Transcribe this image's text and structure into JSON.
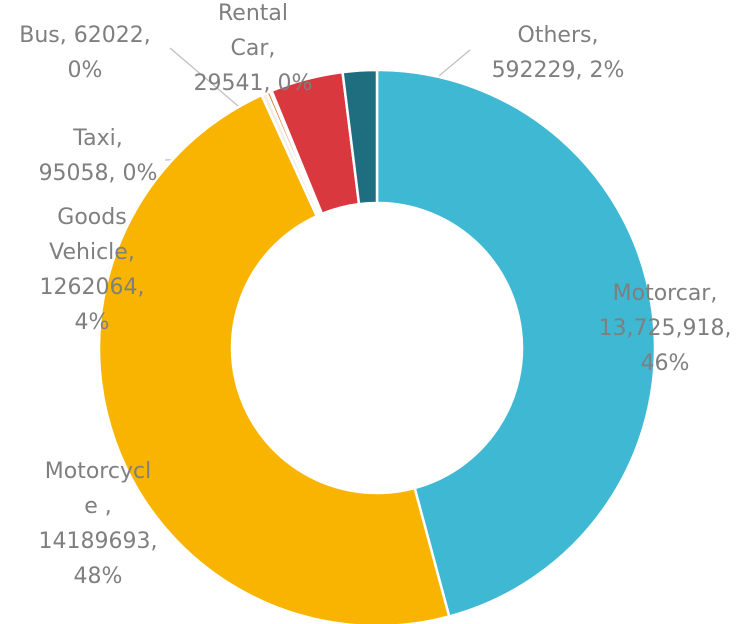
{
  "chart_data": {
    "type": "donut",
    "values": [
      13725918,
      14189693,
      95058,
      62022,
      29541,
      1262064,
      592229
    ],
    "colors": [
      "#3fb8d4",
      "#f8b400",
      "#f3efe6",
      "#e8762c",
      "#c0392b",
      "#d9383e",
      "#1f6e80"
    ],
    "labels": [
      [
        "Motorcar,",
        "13,725,918,",
        "46%"
      ],
      [
        "Motorcycl",
        "e ,",
        "14189693,",
        "48%"
      ],
      [
        "Taxi,",
        "95058, 0%"
      ],
      [
        "Bus, 62022,",
        "0%"
      ],
      [
        "Rental",
        "Car,",
        "29541, 0%"
      ],
      [
        "Goods",
        "Vehicle,",
        "1262064,",
        "4%"
      ],
      [
        "Others,",
        "592229, 2%"
      ]
    ]
  }
}
